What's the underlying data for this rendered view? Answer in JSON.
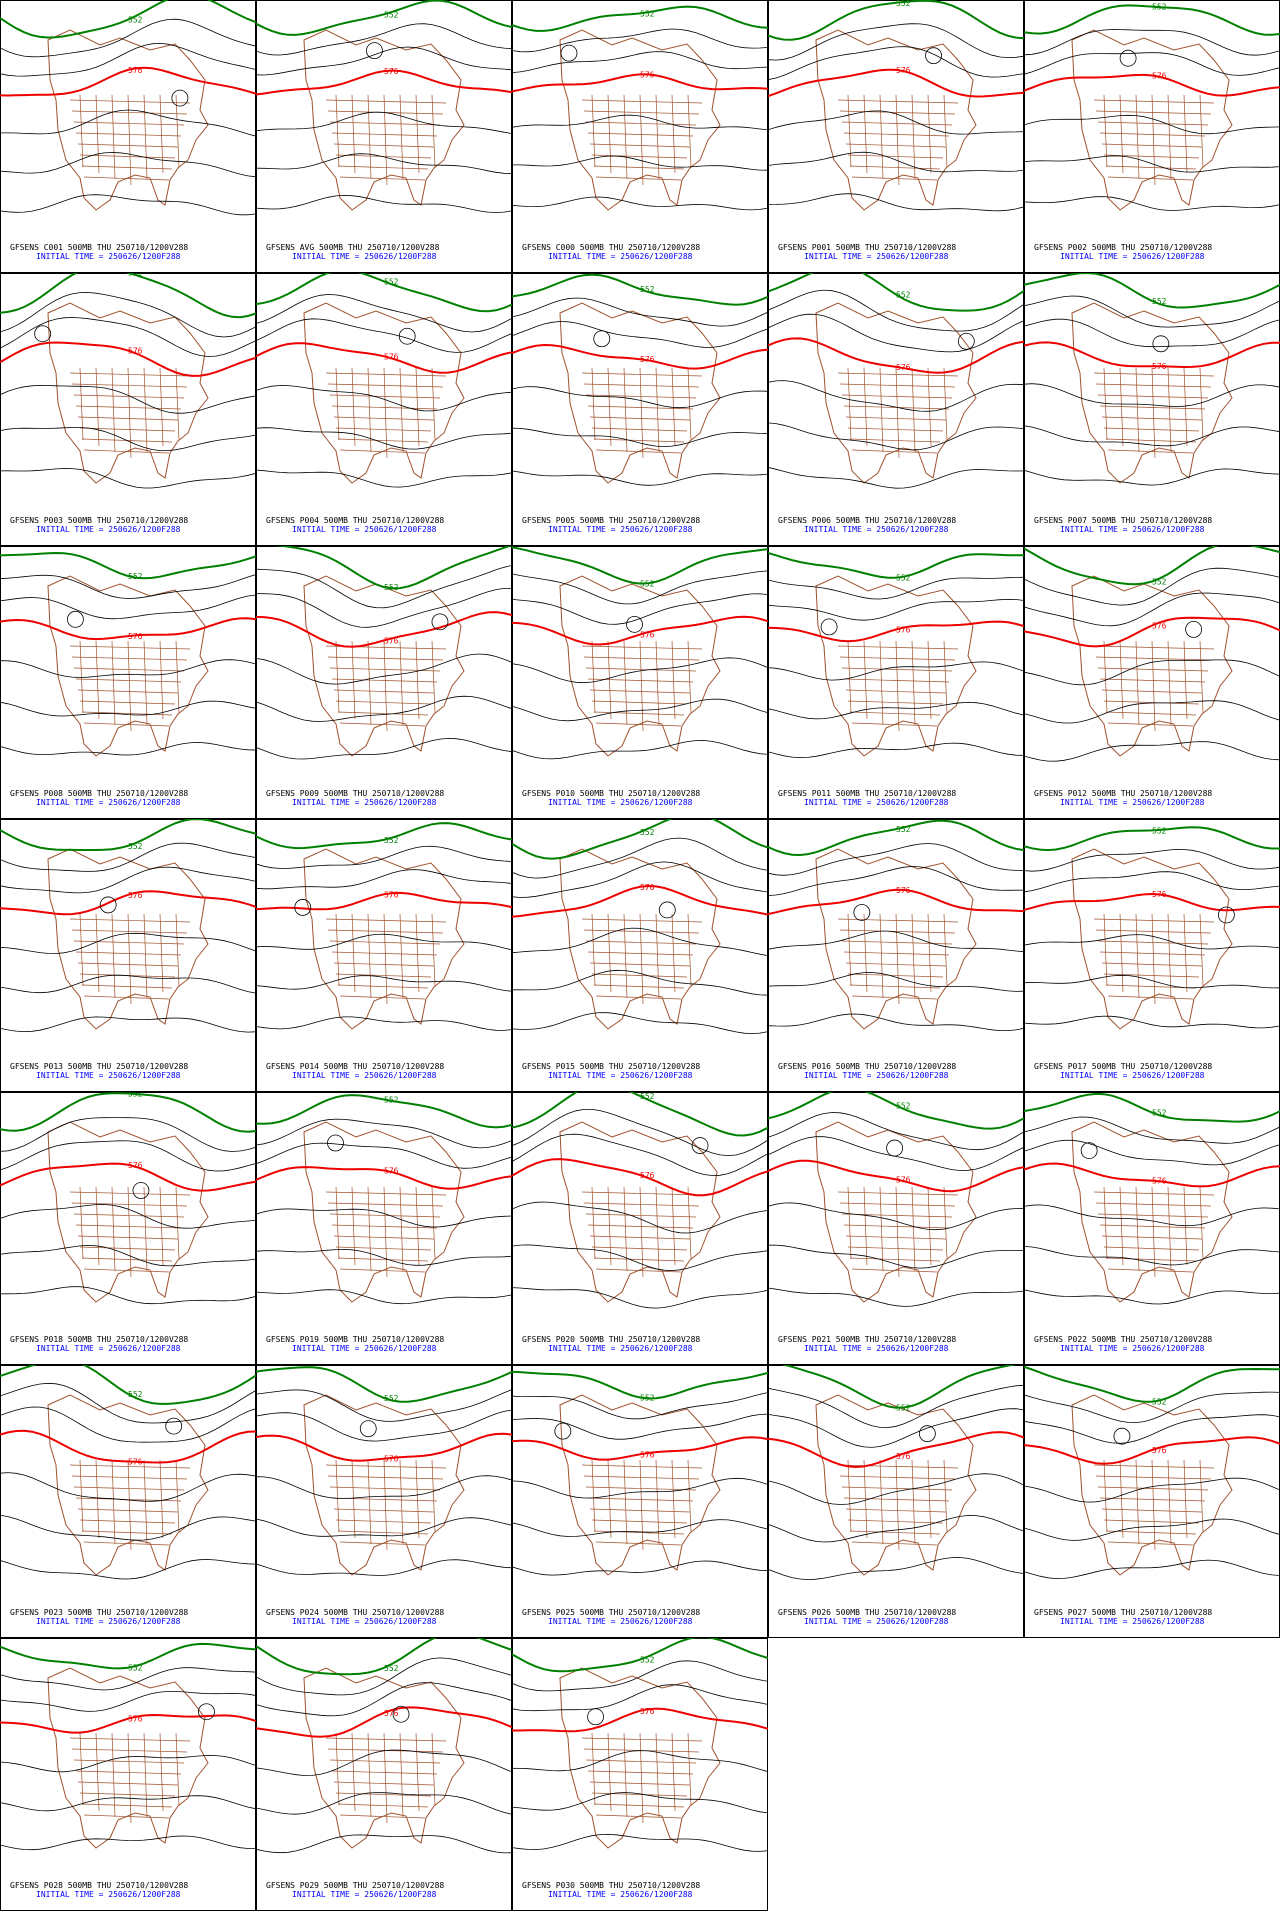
{
  "contour_labels": {
    "green": "552",
    "red": "576"
  },
  "panels": [
    {
      "title": "GFSENS C001 500MB THU 250710/1200V288",
      "initial_time": "INITIAL TIME = 250626/1200F288"
    },
    {
      "title": "GFSENS AVG 500MB THU 250710/1200V288",
      "initial_time": "INITIAL TIME = 250626/1200F288"
    },
    {
      "title": "GFSENS C000 500MB THU 250710/1200V288",
      "initial_time": "INITIAL TIME = 250626/1200F288"
    },
    {
      "title": "GFSENS P001 500MB THU 250710/1200V288",
      "initial_time": "INITIAL TIME = 250626/1200F288"
    },
    {
      "title": "GFSENS P002 500MB THU 250710/1200V288",
      "initial_time": "INITIAL TIME = 250626/1200F288"
    },
    {
      "title": "GFSENS P003 500MB THU 250710/1200V288",
      "initial_time": "INITIAL TIME = 250626/1200F288"
    },
    {
      "title": "GFSENS P004 500MB THU 250710/1200V288",
      "initial_time": "INITIAL TIME = 250626/1200F288"
    },
    {
      "title": "GFSENS P005 500MB THU 250710/1200V288",
      "initial_time": "INITIAL TIME = 250626/1200F288"
    },
    {
      "title": "GFSENS P006 500MB THU 250710/1200V288",
      "initial_time": "INITIAL TIME = 250626/1200F288"
    },
    {
      "title": "GFSENS P007 500MB THU 250710/1200V288",
      "initial_time": "INITIAL TIME = 250626/1200F288"
    },
    {
      "title": "GFSENS P008 500MB THU 250710/1200V288",
      "initial_time": "INITIAL TIME = 250626/1200F288"
    },
    {
      "title": "GFSENS P009 500MB THU 250710/1200V288",
      "initial_time": "INITIAL TIME = 250626/1200F288"
    },
    {
      "title": "GFSENS P010 500MB THU 250710/1200V288",
      "initial_time": "INITIAL TIME = 250626/1200F288"
    },
    {
      "title": "GFSENS P011 500MB THU 250710/1200V288",
      "initial_time": "INITIAL TIME = 250626/1200F288"
    },
    {
      "title": "GFSENS P012 500MB THU 250710/1200V288",
      "initial_time": "INITIAL TIME = 250626/1200F288"
    },
    {
      "title": "GFSENS P013 500MB THU 250710/1200V288",
      "initial_time": "INITIAL TIME = 250626/1200F288"
    },
    {
      "title": "GFSENS P014 500MB THU 250710/1200V288",
      "initial_time": "INITIAL TIME = 250626/1200F288"
    },
    {
      "title": "GFSENS P015 500MB THU 250710/1200V288",
      "initial_time": "INITIAL TIME = 250626/1200F288"
    },
    {
      "title": "GFSENS P016 500MB THU 250710/1200V288",
      "initial_time": "INITIAL TIME = 250626/1200F288"
    },
    {
      "title": "GFSENS P017 500MB THU 250710/1200V288",
      "initial_time": "INITIAL TIME = 250626/1200F288"
    },
    {
      "title": "GFSENS P018 500MB THU 250710/1200V288",
      "initial_time": "INITIAL TIME = 250626/1200F288"
    },
    {
      "title": "GFSENS P019 500MB THU 250710/1200V288",
      "initial_time": "INITIAL TIME = 250626/1200F288"
    },
    {
      "title": "GFSENS P020 500MB THU 250710/1200V288",
      "initial_time": "INITIAL TIME = 250626/1200F288"
    },
    {
      "title": "GFSENS P021 500MB THU 250710/1200V288",
      "initial_time": "INITIAL TIME = 250626/1200F288"
    },
    {
      "title": "GFSENS P022 500MB THU 250710/1200V288",
      "initial_time": "INITIAL TIME = 250626/1200F288"
    },
    {
      "title": "GFSENS P023 500MB THU 250710/1200V288",
      "initial_time": "INITIAL TIME = 250626/1200F288"
    },
    {
      "title": "GFSENS P024 500MB THU 250710/1200V288",
      "initial_time": "INITIAL TIME = 250626/1200F288"
    },
    {
      "title": "GFSENS P025 500MB THU 250710/1200V288",
      "initial_time": "INITIAL TIME = 250626/1200F288"
    },
    {
      "title": "GFSENS P026 500MB THU 250710/1200V288",
      "initial_time": "INITIAL TIME = 250626/1200F288"
    },
    {
      "title": "GFSENS P027 500MB THU 250710/1200V288",
      "initial_time": "INITIAL TIME = 250626/1200F288"
    },
    {
      "title": "GFSENS P028 500MB THU 250710/1200V288",
      "initial_time": "INITIAL TIME = 250626/1200F288"
    },
    {
      "title": "GFSENS P029 500MB THU 250710/1200V288",
      "initial_time": "INITIAL TIME = 250626/1200F288"
    },
    {
      "title": "GFSENS P030 500MB THU 250710/1200V288",
      "initial_time": "INITIAL TIME = 250626/1200F288"
    }
  ]
}
